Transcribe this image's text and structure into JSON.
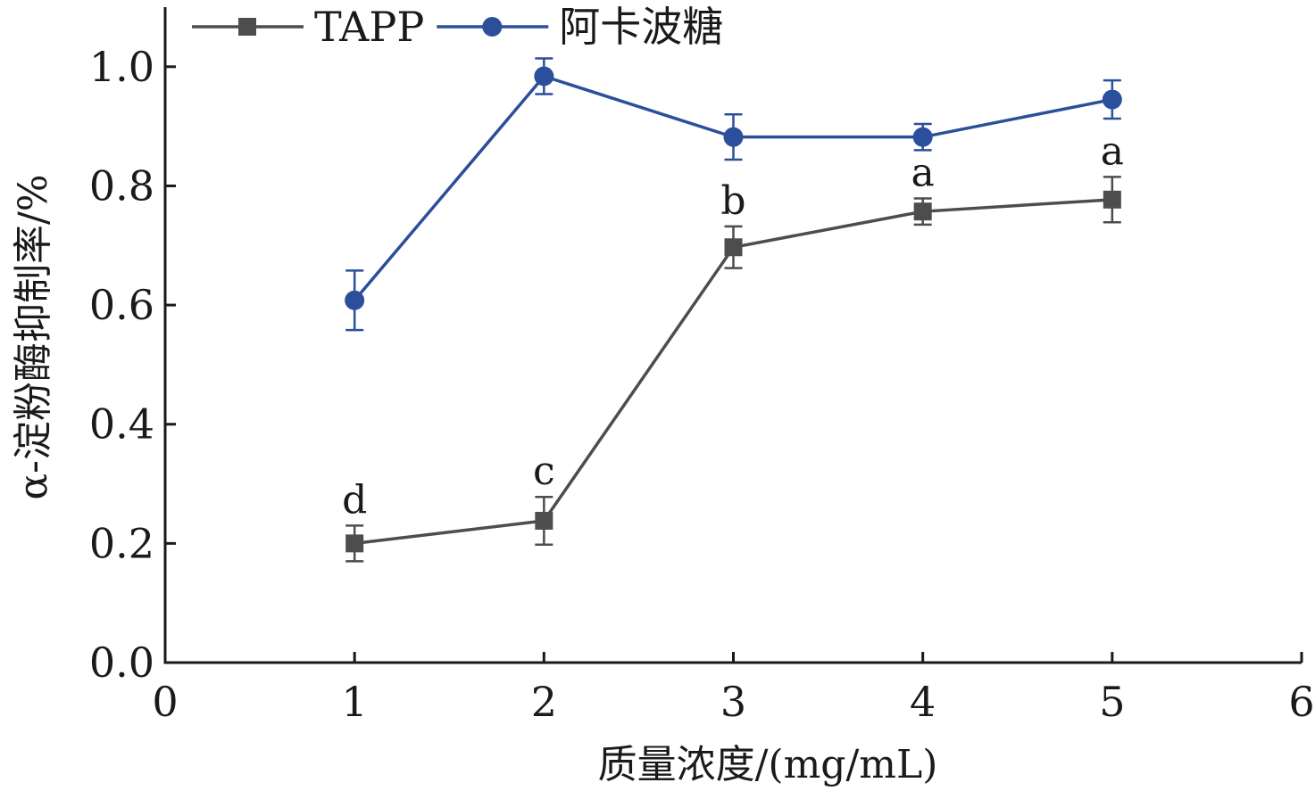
{
  "chart_data": {
    "type": "line",
    "xlabel": "质量浓度/(mg/mL)",
    "ylabel": "α-淀粉酶抑制率/%",
    "xlim": [
      0,
      6
    ],
    "ylim": [
      0.0,
      1.1
    ],
    "xticks": [
      0,
      1,
      2,
      3,
      4,
      5,
      6
    ],
    "yticks": [
      0.0,
      0.2,
      0.4,
      0.6,
      0.8,
      1.0
    ],
    "xtick_labels": [
      "0",
      "1",
      "2",
      "3",
      "4",
      "5",
      "6"
    ],
    "ytick_labels": [
      "0.0",
      "0.2",
      "0.4",
      "0.6",
      "0.8",
      "1.0"
    ],
    "grid": false,
    "legend_position": "top-left",
    "series": [
      {
        "name": "TAPP",
        "color": "#4d4d4d",
        "marker": "square",
        "x": [
          1,
          2,
          3,
          4,
          5
        ],
        "y": [
          0.2,
          0.238,
          0.697,
          0.757,
          0.777
        ],
        "error": [
          0.03,
          0.04,
          0.035,
          0.022,
          0.038
        ],
        "significance": [
          "d",
          "c",
          "b",
          "a",
          "a"
        ]
      },
      {
        "name": "阿卡波糖",
        "color": "#2b4f9b",
        "marker": "circle",
        "x": [
          1,
          2,
          3,
          4,
          5
        ],
        "y": [
          0.608,
          0.984,
          0.882,
          0.882,
          0.945
        ],
        "error": [
          0.05,
          0.03,
          0.038,
          0.022,
          0.032
        ]
      }
    ]
  }
}
